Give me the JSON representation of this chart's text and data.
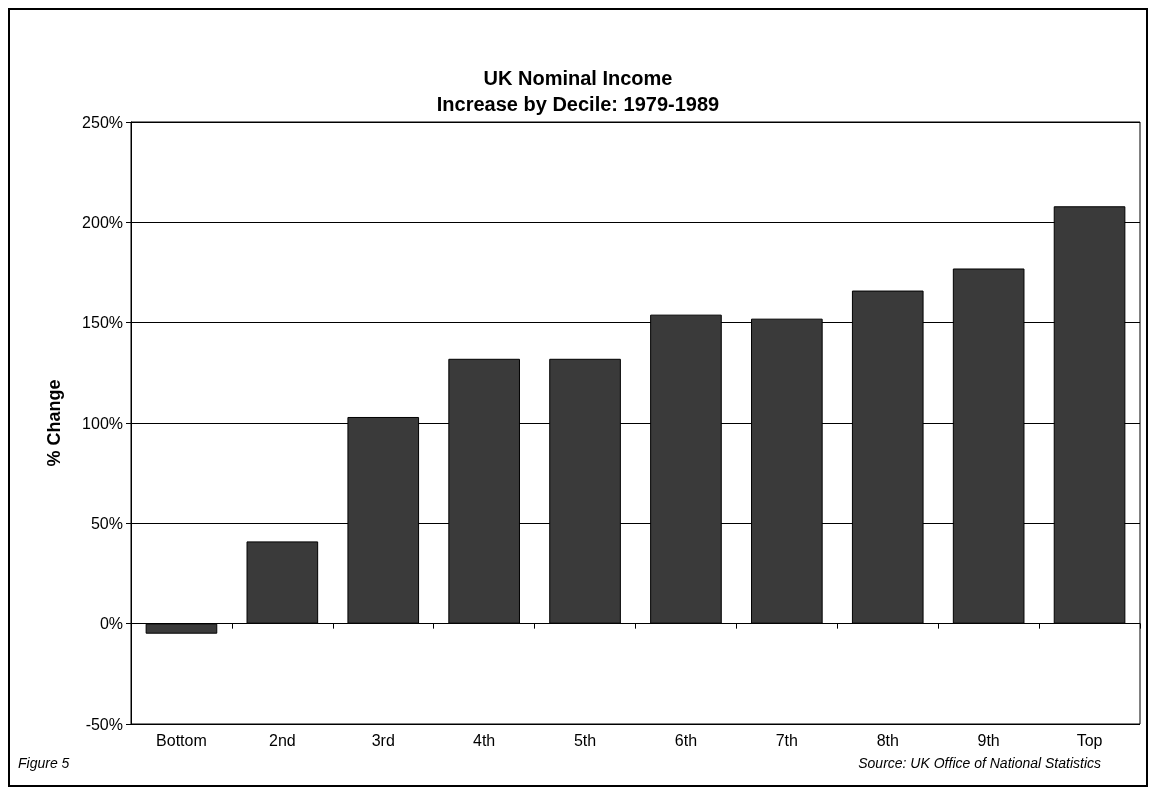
{
  "chart_data": {
    "type": "bar",
    "title": "UK Nominal Income\nIncrease by Decile: 1979-1989",
    "ylabel": "% Change",
    "categories": [
      "Bottom",
      "2nd",
      "3rd",
      "4th",
      "5th",
      "6th",
      "7th",
      "8th",
      "9th",
      "Top"
    ],
    "values": [
      -5,
      41,
      103,
      132,
      132,
      154,
      152,
      166,
      177,
      208
    ],
    "color": "#3a3a3a",
    "ylim": [
      -50,
      250
    ],
    "yticks": [
      {
        "value": -50,
        "label": "-50%"
      },
      {
        "value": 0,
        "label": "0%"
      },
      {
        "value": 50,
        "label": "50%"
      },
      {
        "value": 100,
        "label": "100%"
      },
      {
        "value": 150,
        "label": "150%"
      },
      {
        "value": 200,
        "label": "200%"
      },
      {
        "value": 250,
        "label": "250%"
      }
    ],
    "grid": "y",
    "annotations": [
      "Figure 5",
      "Source: UK Office of National Statistics"
    ]
  }
}
